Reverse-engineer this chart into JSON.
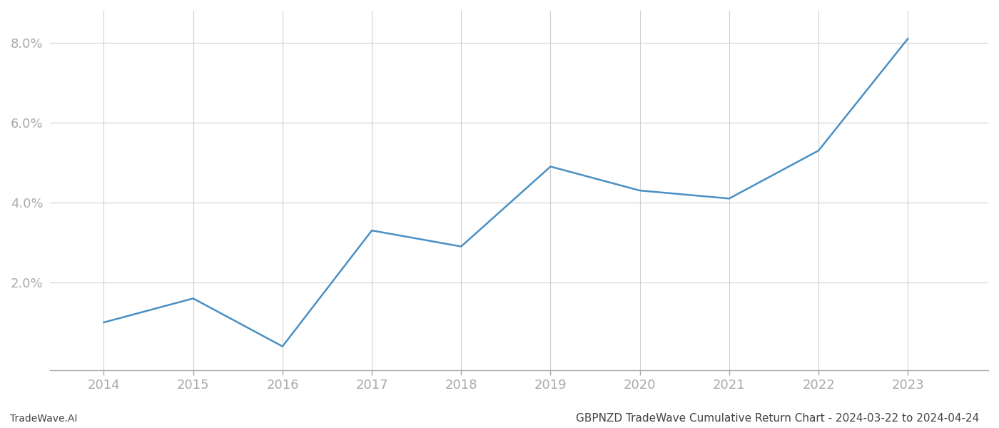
{
  "years": [
    2014,
    2015,
    2016,
    2017,
    2018,
    2019,
    2020,
    2021,
    2022,
    2023
  ],
  "values": [
    0.01,
    0.016,
    0.004,
    0.033,
    0.029,
    0.049,
    0.043,
    0.041,
    0.053,
    0.081
  ],
  "line_color": "#4a90c4",
  "line_width": 1.8,
  "background_color": "#ffffff",
  "grid_color": "#d0d0d0",
  "title": "GBPNZD TradeWave Cumulative Return Chart - 2024-03-22 to 2024-04-24",
  "footer_left": "TradeWave.AI",
  "ylim_min": -0.002,
  "ylim_max": 0.088,
  "yticks": [
    0.02,
    0.04,
    0.06,
    0.08
  ],
  "ytick_labels": [
    "2.0%",
    "4.0%",
    "6.0%",
    "8.0%"
  ],
  "tick_color": "#aaaaaa",
  "spine_color": "#aaaaaa",
  "title_fontsize": 11,
  "footer_fontsize": 10,
  "tick_fontsize": 13
}
